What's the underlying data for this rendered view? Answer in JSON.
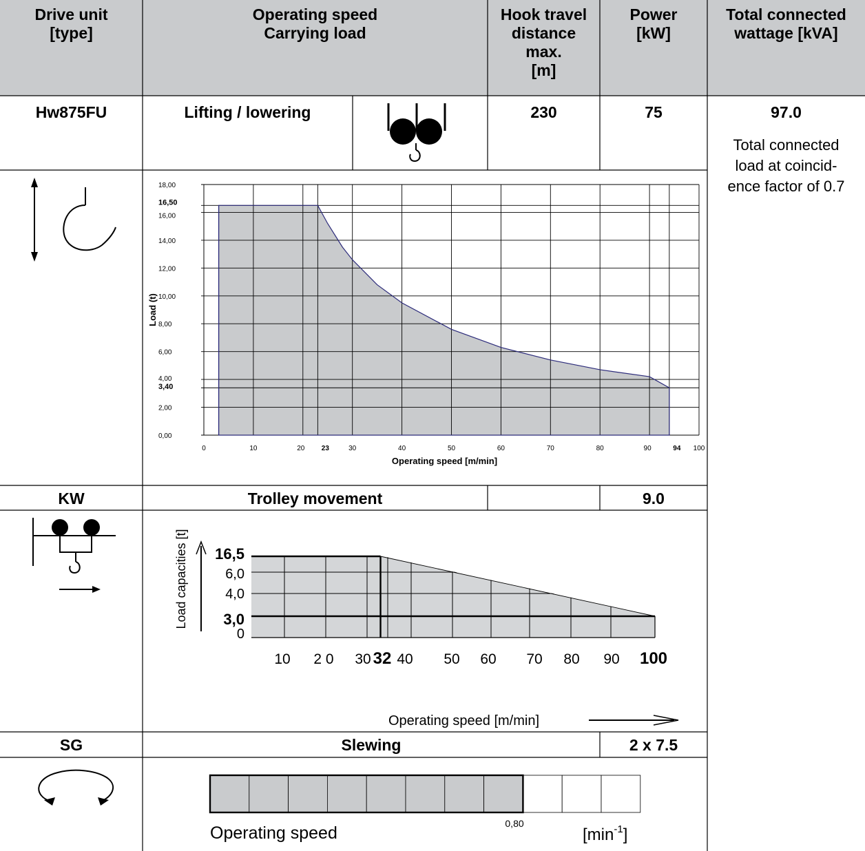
{
  "header": {
    "col1": [
      "Drive unit",
      "[type]"
    ],
    "col2": [
      "Operating speed",
      "Carrying load"
    ],
    "col3": [
      "Hook travel",
      "distance",
      "max.",
      "[m]"
    ],
    "col4": [
      "Power",
      "[kW]"
    ],
    "col5": [
      "Total connected",
      "wattage [kVA]"
    ]
  },
  "hoist": {
    "type": "Hw875FU",
    "label": "Lifting / lowering",
    "hook_travel": "230",
    "power": "75",
    "icon": "twin-drum-hook-icon",
    "side_icon": "up-down-hook-icon"
  },
  "total": {
    "value": "97.0",
    "note": [
      "Total connected",
      "load at coincid-",
      "ence factor of 0.7"
    ]
  },
  "trolley": {
    "type": "KW",
    "label": "Trolley movement",
    "power": "9.0",
    "icon": "trolley-hook-icon"
  },
  "slewing": {
    "type": "SG",
    "label": "Slewing",
    "power": "2 x 7.5",
    "icon": "slewing-arrows-icon"
  },
  "chart_data": [
    {
      "type": "area",
      "xlabel": "Operating speed  [m/min]",
      "ylabel": "Load (t)",
      "xlim": [
        0,
        100
      ],
      "ylim": [
        0,
        18
      ],
      "x_ticks": [
        "0",
        "10",
        "20",
        "23",
        "30",
        "40",
        "50",
        "60",
        "70",
        "80",
        "90",
        "94",
        "100"
      ],
      "x_ticks_bold": [
        "23",
        "94"
      ],
      "y_ticks": [
        "0,00",
        "2,00",
        "3,40",
        "4,00",
        "6,00",
        "8,00",
        "10,00",
        "12,00",
        "14,00",
        "16,00",
        "16,50",
        "18,00"
      ],
      "y_ticks_bold": [
        "3,40",
        "16,50"
      ],
      "series": [
        {
          "x": [
            3,
            23,
            25,
            28,
            30,
            35,
            40,
            50,
            60,
            70,
            80,
            90,
            94
          ],
          "y": [
            16.5,
            16.5,
            15.2,
            13.5,
            12.6,
            10.8,
            9.5,
            7.6,
            6.3,
            5.4,
            4.7,
            4.2,
            3.4
          ]
        }
      ],
      "grid": true,
      "fill_color": "#c9cbcd",
      "line_color": "#2b2a7a"
    },
    {
      "type": "area",
      "xlabel": "Operating speed [m/min]",
      "ylabel": "Load capacities  [t]",
      "x_ticks": [
        "10",
        "2 0",
        "30",
        "32",
        "40",
        "50",
        "60",
        "70",
        "80",
        "90",
        "100"
      ],
      "x_ticks_bold": [
        "32",
        "100"
      ],
      "y_ticks": [
        "0",
        "3,0",
        "4,0",
        "6,0",
        "16,5"
      ],
      "y_ticks_bold": [
        "3,0",
        "16,5"
      ],
      "points": [
        {
          "x": 0,
          "y": 16.5
        },
        {
          "x": 32,
          "y": 16.5
        },
        {
          "x": 100,
          "y": 3.0
        }
      ],
      "grid": true,
      "fill_color": "#d4d6d8"
    },
    {
      "type": "bar",
      "xlabel": "Operating speed",
      "unit": "[min",
      "unit_exp": "-1",
      "unit_close": "]",
      "value_label": "0,80",
      "value": 0.8,
      "cells_total": 11,
      "cells_filled": 8,
      "fill_color": "#c9cbcd"
    }
  ]
}
